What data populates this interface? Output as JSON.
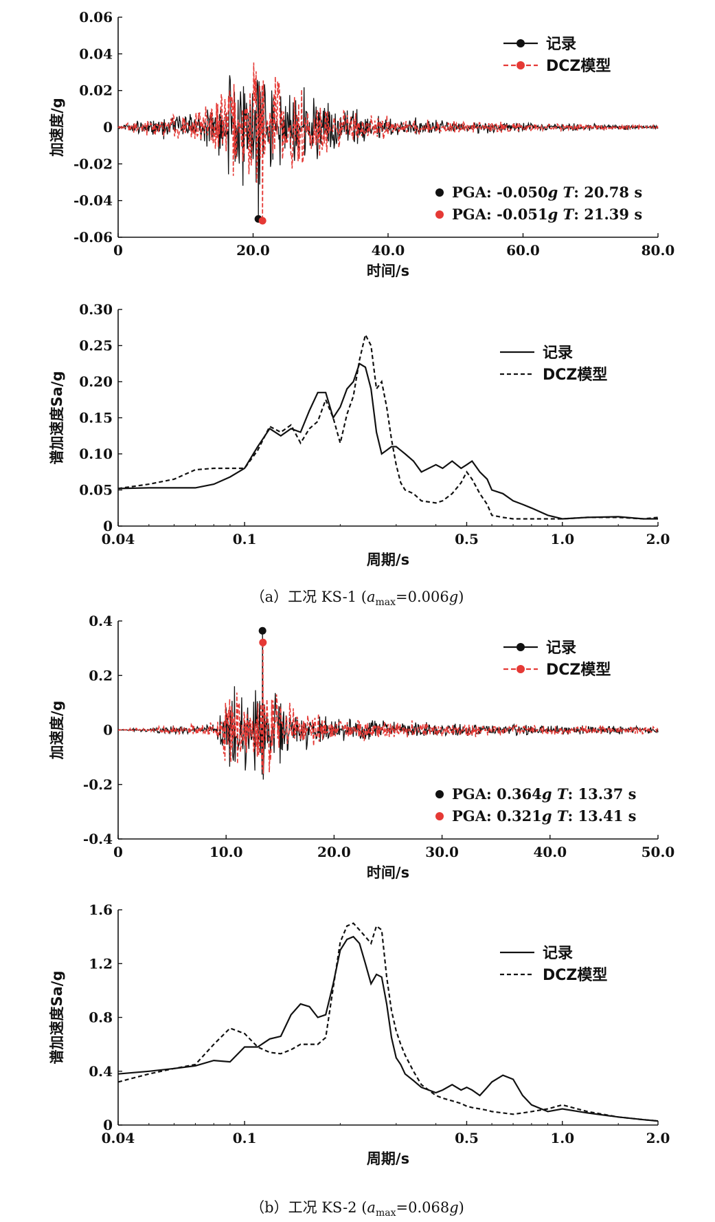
{
  "colors": {
    "record": "#111111",
    "model": "#e53935",
    "axis": "#111111"
  },
  "captions": {
    "a": {
      "prefix": "（a）工况 KS-1 (",
      "a": "a",
      "sub": "max",
      "mid": "=0.006",
      "g": "g",
      "suffix": ")"
    },
    "b": {
      "prefix": "（b）工况 KS-2 (",
      "a": "a",
      "sub": "max",
      "mid": "=0.068",
      "g": "g",
      "suffix": ")"
    }
  },
  "chart_data": [
    {
      "id": "a-time",
      "type": "line",
      "title": "",
      "xlabel": "时间/s",
      "ylabel": "加速度/g",
      "xlim": [
        0,
        80
      ],
      "ylim": [
        -0.06,
        0.06
      ],
      "xticks": [
        0,
        20,
        40,
        60,
        80
      ],
      "xtick_labels": [
        "0",
        "20.0",
        "40.0",
        "60.0",
        "80.0"
      ],
      "yticks": [
        -0.06,
        -0.04,
        -0.02,
        0,
        0.02,
        0.04,
        0.06
      ],
      "ytick_labels": [
        "-0.06",
        "-0.04",
        "-0.02",
        "0",
        "0.02",
        "0.04",
        "0.06"
      ],
      "legend": [
        "记录",
        "DCZ模型"
      ],
      "legend_position": "top-right",
      "envelope": [
        [
          0,
          0.0008
        ],
        [
          3,
          0.005
        ],
        [
          6,
          0.008
        ],
        [
          10,
          0.01
        ],
        [
          13,
          0.014
        ],
        [
          15,
          0.025
        ],
        [
          18,
          0.04
        ],
        [
          20,
          0.042
        ],
        [
          22,
          0.04
        ],
        [
          24,
          0.032
        ],
        [
          28,
          0.025
        ],
        [
          32,
          0.015
        ],
        [
          38,
          0.008
        ],
        [
          45,
          0.005
        ],
        [
          60,
          0.003
        ],
        [
          80,
          0.0015
        ]
      ],
      "series": [
        {
          "name": "记录",
          "seed": 11,
          "peak": {
            "t": 20.78,
            "v": -0.05
          }
        },
        {
          "name": "DCZ模型",
          "seed": 29,
          "peak": {
            "t": 21.39,
            "v": -0.051
          }
        }
      ],
      "annotations": [
        {
          "label": "PGA: -0.050",
          "unit": "g",
          "tlabel": "T",
          "tval": ": 20.78 s"
        },
        {
          "label": "PGA: -0.051",
          "unit": "g",
          "tlabel": "T",
          "tval": ": 21.39 s"
        }
      ]
    },
    {
      "id": "a-spectrum",
      "type": "line",
      "xscale": "log",
      "xlabel": "周期/s",
      "ylabel": "谱加速度Sa/g",
      "xlim": [
        0.04,
        2.0
      ],
      "ylim": [
        0,
        0.3
      ],
      "xticks": [
        0.04,
        0.1,
        0.5,
        1.0,
        2.0
      ],
      "xtick_labels": [
        "0.04",
        "0.1",
        "0.5",
        "1.0",
        "2.0"
      ],
      "yticks": [
        0,
        0.05,
        0.1,
        0.15,
        0.2,
        0.25,
        0.3
      ],
      "ytick_labels": [
        "0",
        "0.05",
        "0.10",
        "0.15",
        "0.20",
        "0.25",
        "0.30"
      ],
      "legend": [
        "记录",
        "DCZ模型"
      ],
      "legend_position": "top-right",
      "series": [
        {
          "name": "记录",
          "style": "solid",
          "x": [
            0.04,
            0.05,
            0.06,
            0.07,
            0.08,
            0.09,
            0.1,
            0.11,
            0.12,
            0.13,
            0.14,
            0.15,
            0.16,
            0.17,
            0.18,
            0.19,
            0.2,
            0.21,
            0.22,
            0.23,
            0.24,
            0.25,
            0.26,
            0.27,
            0.28,
            0.29,
            0.3,
            0.31,
            0.32,
            0.34,
            0.36,
            0.4,
            0.42,
            0.45,
            0.48,
            0.5,
            0.52,
            0.55,
            0.58,
            0.6,
            0.65,
            0.7,
            0.75,
            0.8,
            0.9,
            1.0,
            1.2,
            1.5,
            1.8,
            2.0
          ],
          "y": [
            0.052,
            0.053,
            0.053,
            0.053,
            0.058,
            0.068,
            0.08,
            0.11,
            0.135,
            0.125,
            0.135,
            0.13,
            0.16,
            0.185,
            0.185,
            0.15,
            0.165,
            0.19,
            0.2,
            0.225,
            0.22,
            0.19,
            0.13,
            0.1,
            0.105,
            0.11,
            0.11,
            0.105,
            0.1,
            0.09,
            0.075,
            0.085,
            0.08,
            0.09,
            0.08,
            0.085,
            0.09,
            0.075,
            0.065,
            0.05,
            0.045,
            0.035,
            0.03,
            0.025,
            0.015,
            0.01,
            0.012,
            0.013,
            0.01,
            0.01
          ]
        },
        {
          "name": "DCZ模型",
          "style": "dashed",
          "x": [
            0.04,
            0.05,
            0.06,
            0.07,
            0.08,
            0.09,
            0.1,
            0.11,
            0.12,
            0.13,
            0.14,
            0.15,
            0.16,
            0.17,
            0.18,
            0.19,
            0.2,
            0.21,
            0.22,
            0.23,
            0.24,
            0.25,
            0.26,
            0.27,
            0.28,
            0.29,
            0.3,
            0.31,
            0.32,
            0.34,
            0.36,
            0.4,
            0.42,
            0.45,
            0.48,
            0.5,
            0.52,
            0.55,
            0.58,
            0.6,
            0.65,
            0.7,
            0.75,
            0.8,
            0.9,
            1.0,
            1.2,
            1.5,
            1.8,
            2.0
          ],
          "y": [
            0.052,
            0.058,
            0.065,
            0.078,
            0.08,
            0.08,
            0.08,
            0.105,
            0.138,
            0.13,
            0.14,
            0.115,
            0.135,
            0.145,
            0.175,
            0.15,
            0.115,
            0.155,
            0.18,
            0.23,
            0.265,
            0.25,
            0.19,
            0.2,
            0.165,
            0.12,
            0.085,
            0.06,
            0.05,
            0.045,
            0.035,
            0.032,
            0.035,
            0.045,
            0.06,
            0.075,
            0.065,
            0.045,
            0.03,
            0.015,
            0.012,
            0.01,
            0.01,
            0.01,
            0.01,
            0.01,
            0.012,
            0.012,
            0.01,
            0.012
          ]
        }
      ]
    },
    {
      "id": "b-time",
      "type": "line",
      "xlabel": "时间/s",
      "ylabel": "加速度/g",
      "xlim": [
        0,
        50
      ],
      "ylim": [
        -0.4,
        0.4
      ],
      "xticks": [
        0,
        10,
        20,
        30,
        40,
        50
      ],
      "xtick_labels": [
        "0",
        "10.0",
        "20.0",
        "30.0",
        "40.0",
        "50.0"
      ],
      "yticks": [
        -0.4,
        -0.2,
        0,
        0.2,
        0.4
      ],
      "ytick_labels": [
        "-0.4",
        "-0.2",
        "0",
        "0.2",
        "0.4"
      ],
      "legend": [
        "记录",
        "DCZ模型"
      ],
      "legend_position": "top-right",
      "envelope": [
        [
          0,
          0.003
        ],
        [
          3,
          0.01
        ],
        [
          5,
          0.02
        ],
        [
          9,
          0.03
        ],
        [
          9.6,
          0.18
        ],
        [
          11,
          0.2
        ],
        [
          12,
          0.15
        ],
        [
          13,
          0.2
        ],
        [
          14,
          0.2
        ],
        [
          16,
          0.12
        ],
        [
          18,
          0.07
        ],
        [
          22,
          0.05
        ],
        [
          28,
          0.035
        ],
        [
          35,
          0.025
        ],
        [
          50,
          0.015
        ]
      ],
      "series": [
        {
          "name": "记录",
          "seed": 7,
          "peak": {
            "t": 13.37,
            "v": 0.364
          }
        },
        {
          "name": "DCZ模型",
          "seed": 43,
          "peak": {
            "t": 13.41,
            "v": 0.321
          }
        }
      ],
      "annotations": [
        {
          "label": "PGA: 0.364",
          "unit": "g",
          "tlabel": "T",
          "tval": ": 13.37 s"
        },
        {
          "label": "PGA: 0.321",
          "unit": "g",
          "tlabel": "T",
          "tval": ": 13.41 s"
        }
      ]
    },
    {
      "id": "b-spectrum",
      "type": "line",
      "xscale": "log",
      "xlabel": "周期/s",
      "ylabel": "谱加速度Sa/g",
      "xlim": [
        0.04,
        2.0
      ],
      "ylim": [
        0,
        1.6
      ],
      "xticks": [
        0.04,
        0.1,
        0.5,
        1.0,
        2.0
      ],
      "xtick_labels": [
        "0.04",
        "0.1",
        "0.5",
        "1.0",
        "2.0"
      ],
      "yticks": [
        0,
        0.4,
        0.8,
        1.2,
        1.6
      ],
      "ytick_labels": [
        "0",
        "0.4",
        "0.8",
        "1.2",
        "1.6"
      ],
      "legend": [
        "记录",
        "DCZ模型"
      ],
      "legend_position": "top-right",
      "series": [
        {
          "name": "记录",
          "style": "solid",
          "x": [
            0.04,
            0.05,
            0.06,
            0.07,
            0.08,
            0.09,
            0.1,
            0.11,
            0.12,
            0.13,
            0.14,
            0.15,
            0.16,
            0.17,
            0.18,
            0.19,
            0.2,
            0.21,
            0.22,
            0.23,
            0.24,
            0.25,
            0.26,
            0.27,
            0.28,
            0.29,
            0.3,
            0.31,
            0.32,
            0.34,
            0.36,
            0.4,
            0.42,
            0.45,
            0.48,
            0.5,
            0.52,
            0.55,
            0.58,
            0.6,
            0.65,
            0.7,
            0.75,
            0.8,
            0.9,
            1.0,
            1.2,
            1.5,
            1.8,
            2.0
          ],
          "y": [
            0.38,
            0.4,
            0.42,
            0.44,
            0.48,
            0.47,
            0.58,
            0.58,
            0.64,
            0.66,
            0.82,
            0.9,
            0.88,
            0.8,
            0.82,
            1.05,
            1.3,
            1.38,
            1.4,
            1.35,
            1.2,
            1.05,
            1.12,
            1.1,
            0.9,
            0.65,
            0.5,
            0.45,
            0.38,
            0.33,
            0.28,
            0.24,
            0.26,
            0.3,
            0.26,
            0.28,
            0.26,
            0.22,
            0.28,
            0.32,
            0.37,
            0.34,
            0.22,
            0.15,
            0.1,
            0.12,
            0.09,
            0.06,
            0.04,
            0.03
          ]
        },
        {
          "name": "DCZ模型",
          "style": "dashed",
          "x": [
            0.04,
            0.05,
            0.06,
            0.07,
            0.08,
            0.09,
            0.1,
            0.11,
            0.12,
            0.13,
            0.14,
            0.15,
            0.16,
            0.17,
            0.18,
            0.19,
            0.2,
            0.21,
            0.22,
            0.23,
            0.24,
            0.25,
            0.26,
            0.27,
            0.28,
            0.29,
            0.3,
            0.31,
            0.32,
            0.34,
            0.36,
            0.4,
            0.42,
            0.45,
            0.48,
            0.5,
            0.52,
            0.55,
            0.58,
            0.6,
            0.65,
            0.7,
            0.75,
            0.8,
            0.9,
            1.0,
            1.2,
            1.5,
            1.8,
            2.0
          ],
          "y": [
            0.32,
            0.38,
            0.42,
            0.45,
            0.6,
            0.72,
            0.68,
            0.58,
            0.54,
            0.53,
            0.56,
            0.6,
            0.6,
            0.6,
            0.65,
            1.02,
            1.36,
            1.48,
            1.5,
            1.45,
            1.4,
            1.35,
            1.48,
            1.45,
            1.1,
            0.85,
            0.7,
            0.6,
            0.52,
            0.4,
            0.3,
            0.22,
            0.2,
            0.18,
            0.16,
            0.14,
            0.13,
            0.12,
            0.11,
            0.1,
            0.09,
            0.08,
            0.09,
            0.1,
            0.12,
            0.15,
            0.1,
            0.06,
            0.04,
            0.03
          ]
        }
      ]
    }
  ]
}
